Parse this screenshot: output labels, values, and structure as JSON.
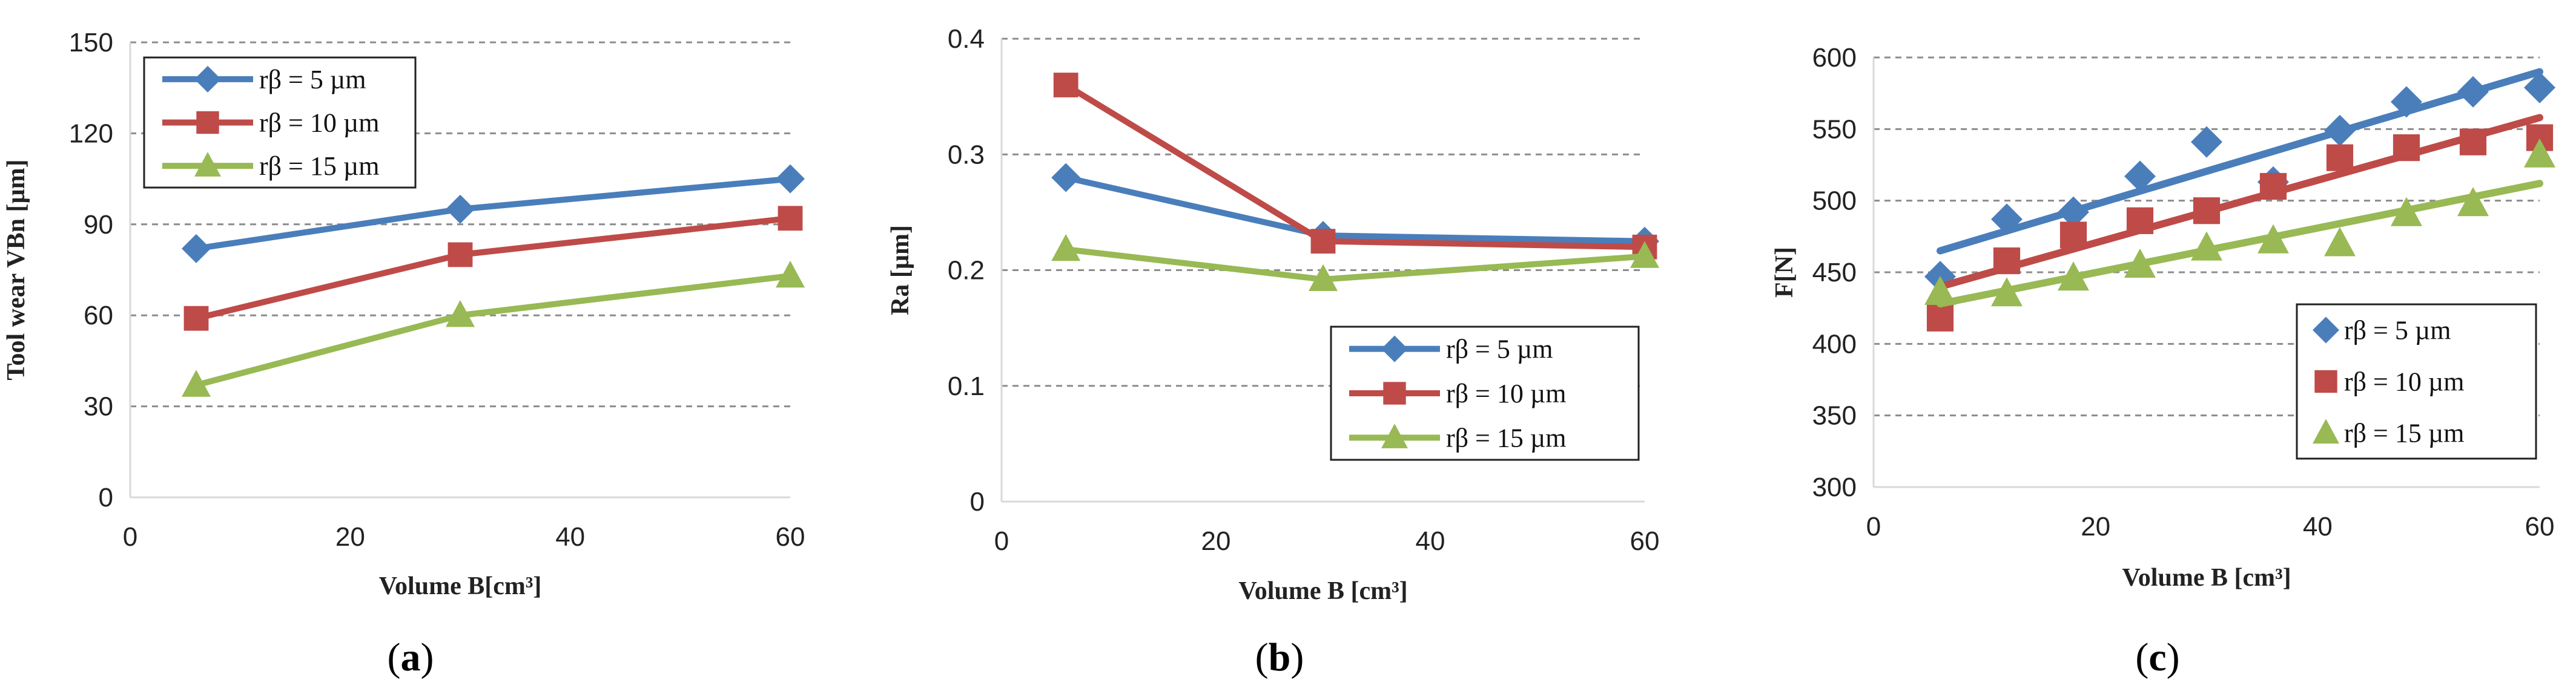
{
  "chart_data": [
    {
      "id": "a",
      "type": "line",
      "panel_label": "a",
      "xlabel": "Volume B[cm³]",
      "ylabel": "Tool wear VBn [µm]",
      "xlim": [
        0,
        60
      ],
      "ylim": [
        0,
        150
      ],
      "xticks": [
        "0",
        "20",
        "40",
        "60"
      ],
      "yticks": [
        "0",
        "30",
        "60",
        "90",
        "120",
        "150"
      ],
      "legend_position": "top-left",
      "series": [
        {
          "name": "rβ = 5 µm",
          "color": "#4a7ebb",
          "marker": "diamond",
          "line": true,
          "x": [
            6,
            30,
            60
          ],
          "values": [
            82,
            95,
            105
          ]
        },
        {
          "name": "rβ = 10 µm",
          "color": "#be4b48",
          "marker": "square",
          "line": true,
          "x": [
            6,
            30,
            60
          ],
          "values": [
            59,
            80,
            92
          ]
        },
        {
          "name": "rβ = 15 µm",
          "color": "#98b954",
          "marker": "triangle",
          "line": true,
          "x": [
            6,
            30,
            60
          ],
          "values": [
            37,
            60,
            73
          ]
        }
      ]
    },
    {
      "id": "b",
      "type": "line",
      "panel_label": "b",
      "xlabel": "Volume B [cm³]",
      "ylabel": "Ra [µm]",
      "xlim": [
        0,
        60
      ],
      "ylim": [
        0,
        0.4
      ],
      "xticks": [
        "0",
        "20",
        "40",
        "60"
      ],
      "yticks": [
        "0",
        "0.1",
        "0.2",
        "0.3",
        "0.4"
      ],
      "legend_position": "bottom-right",
      "series": [
        {
          "name": "rβ = 5 µm",
          "color": "#4a7ebb",
          "marker": "diamond",
          "line": true,
          "x": [
            6,
            30,
            60
          ],
          "values": [
            0.28,
            0.23,
            0.225
          ]
        },
        {
          "name": "rβ = 10 µm",
          "color": "#be4b48",
          "marker": "square",
          "line": true,
          "x": [
            6,
            30,
            60
          ],
          "values": [
            0.36,
            0.225,
            0.22
          ]
        },
        {
          "name": "rβ = 15 µm",
          "color": "#98b954",
          "marker": "triangle",
          "line": true,
          "x": [
            6,
            30,
            60
          ],
          "values": [
            0.218,
            0.192,
            0.212
          ]
        }
      ]
    },
    {
      "id": "c",
      "type": "scatter",
      "panel_label": "c",
      "xlabel": "Volume B [cm³]",
      "ylabel": "F[N]",
      "xlim": [
        0,
        60
      ],
      "ylim": [
        300,
        600
      ],
      "xticks": [
        "0",
        "20",
        "40",
        "60"
      ],
      "yticks": [
        "300",
        "350",
        "400",
        "450",
        "500",
        "550",
        "600"
      ],
      "legend_position": "bottom-right",
      "series": [
        {
          "name": "rβ = 5 µm",
          "color": "#4a7ebb",
          "marker": "diamond",
          "line": false,
          "x": [
            6,
            12,
            18,
            24,
            30,
            36,
            42,
            48,
            54,
            60
          ],
          "values": [
            447,
            487,
            492,
            517,
            541,
            513,
            549,
            569,
            576,
            579
          ],
          "trend": [
            465,
            590
          ]
        },
        {
          "name": "rβ = 10 µm",
          "color": "#be4b48",
          "marker": "square",
          "line": false,
          "x": [
            6,
            12,
            18,
            24,
            30,
            36,
            42,
            48,
            54,
            60
          ],
          "values": [
            418,
            458,
            476,
            486,
            493,
            510,
            530,
            537,
            541,
            544
          ],
          "trend": [
            440,
            558
          ]
        },
        {
          "name": "rβ = 15 µm",
          "color": "#98b954",
          "marker": "triangle",
          "line": false,
          "x": [
            6,
            12,
            18,
            24,
            30,
            36,
            42,
            48,
            54,
            60
          ],
          "values": [
            436,
            435,
            446,
            455,
            467,
            472,
            470,
            491,
            498,
            532
          ],
          "trend": [
            428,
            512
          ]
        }
      ]
    }
  ]
}
